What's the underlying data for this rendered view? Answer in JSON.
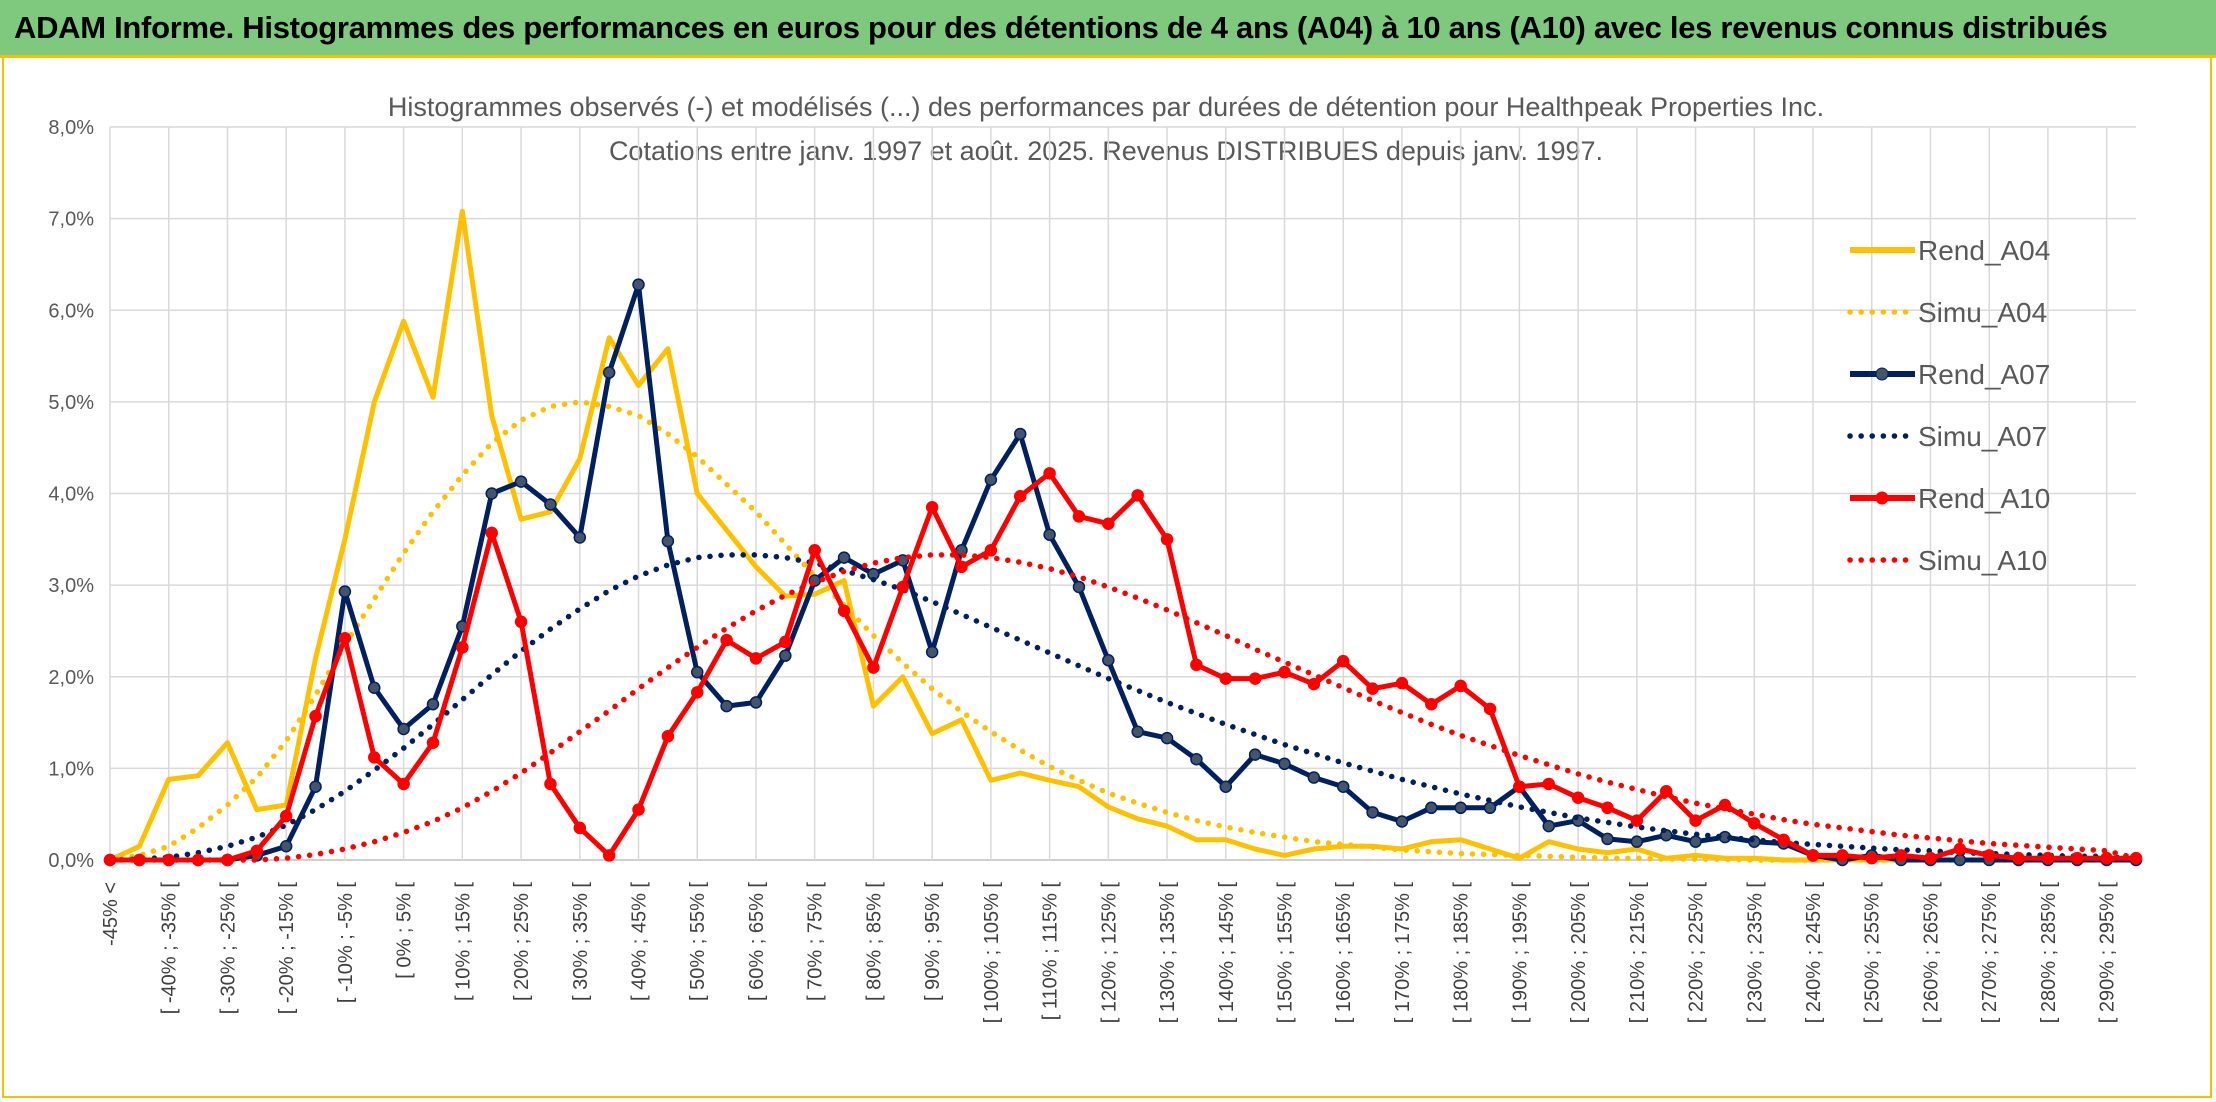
{
  "header": {
    "title": "ADAM Informe. Histogrammes des performances en euros pour des détentions de 4 ans (A04) à 10 ans (A10) avec les revenus connus distribués"
  },
  "chart_data": {
    "type": "line",
    "title": "Histogrammes observés (-) et modélisés (...) des performances par durées de détention pour Healthpeak Properties Inc.",
    "subtitle": "Cotations entre janv. 1997 et août. 2025. Revenus DISTRIBUES depuis janv. 1997.",
    "xlabel": "",
    "ylabel": "",
    "ylim": [
      0,
      8
    ],
    "y_ticks": [
      "0,0%",
      "1,0%",
      "2,0%",
      "3,0%",
      "4,0%",
      "5,0%",
      "6,0%",
      "7,0%",
      "8,0%"
    ],
    "grid": true,
    "legend_position": "right",
    "x_labels": [
      "-45% <",
      "[ -40% ; -35% [",
      "[ -30% ; -25% [",
      "[ -20% ; -15% [",
      "[ -10% ; -5% [",
      "[ 0% ; 5% [",
      "[ 10% ; 15% [",
      "[ 20% ; 25% [",
      "[ 30% ; 35% [",
      "[ 40% ; 45% [",
      "[ 50% ; 55% [",
      "[ 60% ; 65% [",
      "[ 70% ; 75% [",
      "[ 80% ; 85% [",
      "[ 90% ; 95% [",
      "[ 100% ; 105% [",
      "[ 110% ; 115% [",
      "[ 120% ; 125% [",
      "[ 130% ; 135% [",
      "[ 140% ; 145% [",
      "[ 150% ; 155% [",
      "[ 160% ; 165% [",
      "[ 170% ; 175% [",
      "[ 180% ; 185% [",
      "[ 190% ; 195% [",
      "[ 200% ; 205% [",
      "[ 210% ; 215% [",
      "[ 220% ; 225% [",
      "[ 230% ; 235% [",
      "[ 240% ; 245% [",
      "[ 250% ; 255% [",
      "[ 260% ; 265% [",
      "[ 270% ; 275% [",
      "[ 280% ; 285% [",
      "[ 290% ; 295% ["
    ],
    "series": [
      {
        "name": "Rend_A04",
        "style": "solid",
        "color": "#ffc000",
        "markers": false,
        "values": [
          0,
          0.15,
          0.88,
          0.92,
          1.28,
          0.55,
          0.6,
          2.2,
          3.5,
          5.0,
          5.88,
          5.05,
          7.08,
          4.85,
          3.72,
          3.8,
          4.38,
          5.7,
          5.18,
          5.58,
          4.0,
          3.6,
          3.2,
          2.88,
          2.9,
          3.05,
          1.68,
          2.0,
          1.38,
          1.53,
          0.87,
          0.95,
          0.87,
          0.8,
          0.58,
          0.45,
          0.37,
          0.22,
          0.22,
          0.12,
          0.05,
          0.12,
          0.15,
          0.15,
          0.12,
          0.2,
          0.22,
          0.12,
          0.02,
          0.2,
          0.12,
          0.08,
          0.12,
          0.02,
          0.05,
          0.02,
          0.02,
          0,
          0,
          0,
          0,
          0,
          0,
          0,
          0,
          0,
          0,
          0,
          0,
          0
        ]
      },
      {
        "name": "Simu_A04",
        "style": "dotted",
        "color": "#ffc000",
        "markers": false,
        "values": [
          0,
          0.05,
          0.15,
          0.35,
          0.6,
          0.9,
          1.3,
          1.8,
          2.35,
          2.85,
          3.35,
          3.8,
          4.2,
          4.55,
          4.8,
          4.95,
          5.0,
          4.95,
          4.85,
          4.65,
          4.4,
          4.1,
          3.8,
          3.45,
          3.1,
          2.78,
          2.45,
          2.15,
          1.87,
          1.62,
          1.4,
          1.2,
          1.02,
          0.87,
          0.73,
          0.62,
          0.52,
          0.43,
          0.36,
          0.3,
          0.25,
          0.2,
          0.17,
          0.14,
          0.11,
          0.09,
          0.07,
          0.06,
          0.05,
          0.04,
          0.03,
          0.02,
          0.02,
          0.01,
          0.01,
          0.01,
          0,
          0,
          0,
          0,
          0,
          0,
          0,
          0,
          0,
          0,
          0,
          0,
          0,
          0
        ]
      },
      {
        "name": "Rend_A07",
        "style": "solid",
        "color": "#002060",
        "markers": true,
        "values": [
          0,
          0,
          0,
          0,
          0,
          0.05,
          0.15,
          0.8,
          2.93,
          1.88,
          1.43,
          1.7,
          2.55,
          4.0,
          4.13,
          3.88,
          3.52,
          5.32,
          6.28,
          3.48,
          2.05,
          1.68,
          1.72,
          2.23,
          3.05,
          3.3,
          3.12,
          3.27,
          2.27,
          3.38,
          4.15,
          4.65,
          3.55,
          2.98,
          2.18,
          1.4,
          1.33,
          1.1,
          0.8,
          1.15,
          1.05,
          0.9,
          0.8,
          0.52,
          0.42,
          0.57,
          0.57,
          0.57,
          0.8,
          0.37,
          0.43,
          0.23,
          0.2,
          0.27,
          0.2,
          0.25,
          0.2,
          0.18,
          0.05,
          0,
          0.05,
          0,
          0,
          0,
          0,
          0,
          0,
          0,
          0,
          0
        ]
      },
      {
        "name": "Simu_A07",
        "style": "dotted",
        "color": "#002060",
        "markers": false,
        "values": [
          0,
          0.01,
          0.03,
          0.08,
          0.15,
          0.25,
          0.38,
          0.55,
          0.75,
          0.98,
          1.22,
          1.48,
          1.75,
          2.02,
          2.28,
          2.52,
          2.74,
          2.94,
          3.1,
          3.22,
          3.3,
          3.33,
          3.33,
          3.3,
          3.24,
          3.16,
          3.06,
          2.95,
          2.82,
          2.68,
          2.54,
          2.4,
          2.26,
          2.12,
          1.98,
          1.85,
          1.72,
          1.6,
          1.48,
          1.37,
          1.26,
          1.16,
          1.06,
          0.97,
          0.88,
          0.8,
          0.72,
          0.65,
          0.58,
          0.52,
          0.46,
          0.41,
          0.36,
          0.32,
          0.28,
          0.25,
          0.22,
          0.19,
          0.17,
          0.15,
          0.13,
          0.11,
          0.1,
          0.08,
          0.07,
          0.06,
          0.05,
          0.04,
          0.04,
          0
        ]
      },
      {
        "name": "Rend_A10",
        "style": "solid",
        "color": "#ff0000",
        "markers": true,
        "values": [
          0,
          0,
          0,
          0,
          0,
          0.1,
          0.48,
          1.57,
          2.42,
          1.12,
          0.83,
          1.28,
          2.32,
          3.57,
          2.6,
          0.83,
          0.35,
          0.05,
          0.55,
          1.35,
          1.83,
          2.4,
          2.2,
          2.38,
          3.38,
          2.72,
          2.1,
          2.98,
          3.85,
          3.2,
          3.38,
          3.97,
          4.22,
          3.75,
          3.67,
          3.98,
          3.5,
          2.13,
          1.98,
          1.98,
          2.05,
          1.92,
          2.17,
          1.87,
          1.93,
          1.7,
          1.9,
          1.65,
          0.8,
          0.83,
          0.68,
          0.57,
          0.43,
          0.75,
          0.43,
          0.6,
          0.4,
          0.22,
          0.05,
          0.05,
          0.02,
          0.05,
          0.02,
          0.12,
          0.05,
          0.02,
          0.02,
          0.02,
          0.02,
          0.02
        ]
      },
      {
        "name": "Simu_A10",
        "style": "dotted",
        "color": "#ff0000",
        "markers": false,
        "values": [
          0,
          0,
          0,
          0,
          0,
          0,
          0.02,
          0.06,
          0.12,
          0.2,
          0.3,
          0.42,
          0.57,
          0.75,
          0.95,
          1.17,
          1.4,
          1.63,
          1.87,
          2.1,
          2.32,
          2.53,
          2.72,
          2.89,
          3.03,
          3.15,
          3.24,
          3.3,
          3.33,
          3.33,
          3.3,
          3.25,
          3.18,
          3.09,
          2.98,
          2.86,
          2.73,
          2.59,
          2.45,
          2.3,
          2.16,
          2.02,
          1.88,
          1.74,
          1.61,
          1.48,
          1.36,
          1.25,
          1.14,
          1.04,
          0.94,
          0.85,
          0.77,
          0.69,
          0.62,
          0.56,
          0.5,
          0.44,
          0.39,
          0.35,
          0.31,
          0.27,
          0.24,
          0.21,
          0.18,
          0.16,
          0.14,
          0.12,
          0.1,
          0.02
        ]
      }
    ]
  }
}
